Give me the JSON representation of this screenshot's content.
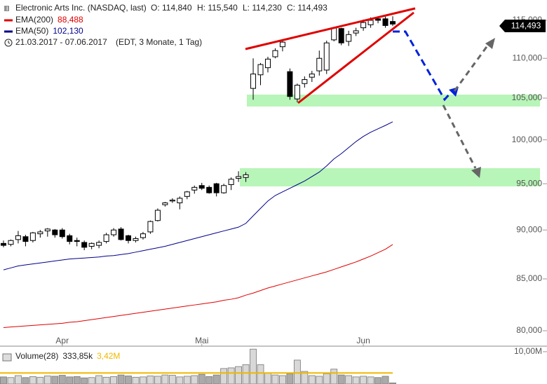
{
  "chart_data": {
    "type": "candlestick",
    "title": "Electronic Arts Inc. (NASDAQ, last)",
    "ohlc_labels": [
      "O: 114,840",
      "H: 115,540",
      "L: 114,230",
      "C: 114,493"
    ],
    "date_range": "21.03.2017 - 07.06.2017",
    "period_note": "(EDT, 3 Monate, 1 Tag)",
    "last_price_label": "114,493",
    "categories": [
      null,
      null,
      null,
      null,
      null,
      null,
      null,
      null,
      "Apr",
      null,
      null,
      null,
      null,
      null,
      null,
      null,
      null,
      null,
      null,
      null,
      null,
      null,
      null,
      null,
      null,
      null,
      null,
      "Mai",
      null,
      null,
      null,
      null,
      null,
      null,
      null,
      null,
      null,
      null,
      null,
      null,
      null,
      null,
      null,
      null,
      null,
      null,
      null,
      null,
      null,
      "Jun",
      null,
      null,
      null,
      null
    ],
    "open": [
      88.6,
      88.5,
      89.0,
      89.3,
      88.9,
      89.6,
      89.9,
      90.0,
      90.0,
      89.4,
      88.9,
      88.7,
      88.3,
      88.4,
      88.8,
      89.5,
      90.1,
      89.4,
      88.9,
      89.2,
      89.8,
      91.0,
      92.7,
      93.1,
      92.9,
      93.6,
      94.3,
      94.8,
      94.6,
      95.0,
      94.0,
      94.9,
      95.6,
      95.7,
      106.2,
      107.9,
      108.8,
      110.2,
      111.5,
      108.3,
      104.9,
      106.8,
      107.6,
      108.4,
      108.5,
      112.4,
      113.9,
      112.2,
      113.3,
      114.0,
      114.4,
      115.2,
      115.2,
      114.84
    ],
    "high": [
      88.9,
      89.0,
      89.9,
      89.5,
      89.8,
      90.0,
      90.2,
      90.1,
      90.2,
      89.6,
      89.2,
      88.9,
      88.7,
      88.9,
      89.7,
      90.2,
      90.3,
      89.5,
      89.3,
      89.8,
      91.0,
      92.3,
      93.0,
      93.4,
      93.6,
      94.2,
      94.8,
      95.1,
      94.8,
      95.1,
      95.0,
      95.7,
      96.4,
      96.3,
      110.0,
      109.4,
      110.2,
      111.3,
      112.4,
      108.7,
      106.8,
      107.7,
      108.4,
      111.0,
      112.3,
      114.1,
      114.0,
      113.6,
      114.0,
      115.1,
      115.4,
      115.4,
      115.5,
      115.54
    ],
    "low": [
      88.2,
      88.3,
      88.6,
      88.3,
      88.7,
      89.2,
      89.3,
      89.2,
      89.1,
      88.5,
      88.3,
      87.9,
      88.0,
      88.1,
      88.6,
      89.3,
      88.9,
      88.6,
      88.7,
      89.0,
      89.6,
      90.9,
      92.5,
      92.9,
      92.2,
      93.3,
      93.9,
      94.3,
      93.9,
      93.6,
      93.9,
      94.3,
      95.2,
      95.2,
      104.8,
      106.6,
      108.2,
      110.0,
      110.9,
      104.8,
      104.5,
      106.3,
      107.0,
      107.8,
      108.0,
      112.2,
      111.7,
      111.6,
      112.9,
      113.6,
      114.0,
      114.6,
      114.0,
      114.23
    ],
    "close": [
      88.4,
      88.9,
      89.4,
      88.8,
      89.7,
      89.8,
      90.1,
      89.5,
      89.3,
      88.8,
      88.8,
      88.2,
      88.6,
      88.7,
      89.5,
      90.0,
      89.0,
      88.9,
      89.1,
      89.6,
      90.9,
      92.1,
      92.9,
      93.2,
      93.4,
      94.1,
      94.6,
      94.5,
      94.0,
      94.0,
      94.8,
      95.5,
      95.8,
      96.0,
      108.0,
      109.2,
      109.9,
      111.0,
      112.1,
      105.2,
      106.6,
      107.3,
      108.0,
      110.0,
      112.0,
      114.0,
      112.0,
      113.1,
      113.6,
      114.7,
      115.0,
      115.0,
      114.3,
      114.493
    ],
    "series": [
      {
        "name": "EMA(200)",
        "color": "#e00000",
        "last_label": "88,488",
        "values": [
          80.3,
          80.35,
          80.4,
          80.45,
          80.5,
          80.55,
          80.6,
          80.65,
          80.7,
          80.8,
          80.85,
          80.95,
          81.05,
          81.15,
          81.25,
          81.35,
          81.45,
          81.55,
          81.65,
          81.75,
          81.85,
          81.95,
          82.05,
          82.15,
          82.25,
          82.35,
          82.45,
          82.55,
          82.65,
          82.75,
          82.9,
          83.0,
          83.15,
          83.4,
          83.6,
          83.85,
          84.1,
          84.3,
          84.5,
          84.7,
          84.9,
          85.1,
          85.3,
          85.5,
          85.7,
          85.95,
          86.2,
          86.45,
          86.7,
          87.0,
          87.3,
          87.65,
          88.0,
          88.488
        ]
      },
      {
        "name": "EMA(50)",
        "color": "#00008b",
        "last_label": "102,130",
        "values": [
          85.9,
          86.1,
          86.3,
          86.4,
          86.5,
          86.6,
          86.7,
          86.8,
          86.9,
          87.0,
          87.05,
          87.1,
          87.15,
          87.2,
          87.3,
          87.35,
          87.45,
          87.55,
          87.7,
          87.85,
          88.0,
          88.15,
          88.3,
          88.5,
          88.7,
          88.9,
          89.1,
          89.3,
          89.5,
          89.7,
          89.9,
          90.1,
          90.3,
          90.7,
          91.5,
          92.3,
          93.1,
          93.7,
          94.1,
          94.5,
          94.9,
          95.3,
          95.8,
          96.3,
          97.0,
          97.8,
          98.4,
          99.1,
          99.8,
          100.4,
          100.9,
          101.3,
          101.7,
          102.13
        ]
      }
    ],
    "ylim": [
      78.83,
      117.76
    ],
    "log_scale": true,
    "grid": false,
    "yticks": [
      {
        "value": 80,
        "label": "80,000"
      },
      {
        "value": 85,
        "label": "85,000"
      },
      {
        "value": 90,
        "label": "90,000"
      },
      {
        "value": 95,
        "label": "95,000"
      },
      {
        "value": 100,
        "label": "100,000"
      },
      {
        "value": 105,
        "label": "105,000"
      },
      {
        "value": 110,
        "label": "110,000"
      },
      {
        "value": 115,
        "label": "115,000"
      }
    ],
    "volume": {
      "name": "Volume(28)",
      "last_label": "333,85k",
      "average": 3.42,
      "average_label": "3,42M",
      "average_color": "#f0b800",
      "values": [
        2.2,
        2.0,
        2.6,
        2.0,
        2.3,
        2.1,
        2.5,
        2.4,
        2.7,
        2.2,
        2.3,
        1.9,
        2.0,
        2.6,
        2.1,
        2.3,
        2.8,
        2.5,
        2.1,
        2.2,
        2.5,
        2.4,
        2.8,
        2.7,
        2.2,
        2.4,
        2.6,
        3.0,
        2.3,
        2.8,
        4.8,
        5.0,
        5.4,
        6.0,
        10.8,
        6.0,
        3.4,
        2.8,
        2.6,
        3.2,
        7.4,
        3.9,
        2.6,
        2.4,
        3.2,
        4.6,
        2.8,
        2.6,
        2.2,
        2.4,
        2.2,
        2.0,
        2.4,
        0.33385
      ],
      "ylim": [
        0,
        11.5
      ],
      "yticks": [
        {
          "value": 10,
          "label": "10,00M"
        }
      ]
    }
  }
}
